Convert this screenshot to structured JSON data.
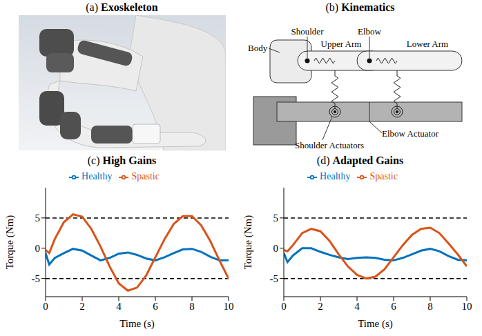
{
  "figure": {
    "a": {
      "letter": "(a)",
      "title": "Exoskeleton"
    },
    "b": {
      "letter": "(b)",
      "title": "Kinematics",
      "labels": {
        "body": "Body",
        "shoulder": "Shoulder",
        "upper_arm": "Upper Arm",
        "elbow": "Elbow",
        "lower_arm": "Lower Arm",
        "elbow_actuator": "Elbow Actuator",
        "shoulder_actuators": "Shoulder Actuators"
      }
    }
  },
  "chart_data": [
    {
      "letter": "(c)",
      "title": "High Gains",
      "type": "line",
      "x_label": "Time (s)",
      "y_label": "Torque (Nm)",
      "xlim": [
        0,
        10
      ],
      "xticks": [
        0,
        2,
        4,
        6,
        8,
        10
      ],
      "ylim": [
        -8,
        10
      ],
      "yticks": [
        -5,
        0,
        5
      ],
      "grid": false,
      "legend": "top",
      "torque_limits": [
        -5,
        5
      ],
      "x": [
        0,
        0.2,
        0.5,
        1,
        1.5,
        2,
        2.5,
        3,
        3.5,
        4,
        4.5,
        5,
        5.5,
        6,
        6.5,
        7,
        7.5,
        8,
        8.5,
        9,
        9.5,
        10
      ],
      "series": [
        {
          "name": "Healthy",
          "color": "#0072bd",
          "values": [
            -0.8,
            -2.7,
            -1.6,
            -0.8,
            -0.1,
            -0.4,
            -1.2,
            -2,
            -1.6,
            -0.9,
            -0.7,
            -1.1,
            -1.7,
            -2,
            -1.5,
            -0.8,
            -0.2,
            -0.1,
            -0.6,
            -1.4,
            -2,
            -2
          ]
        },
        {
          "name": "Spastic",
          "color": "#d95319",
          "values": [
            -0.3,
            -0.8,
            1.5,
            4.3,
            5.6,
            5.2,
            3.2,
            0.3,
            -3,
            -5.8,
            -7,
            -6.5,
            -4.5,
            -1.5,
            1.5,
            4,
            5.3,
            5.3,
            3.8,
            1.2,
            -2,
            -5
          ]
        }
      ]
    },
    {
      "letter": "(d)",
      "title": "Adapted Gains",
      "type": "line",
      "x_label": "Time (s)",
      "y_label": "Torque (Nm)",
      "xlim": [
        0,
        10
      ],
      "xticks": [
        0,
        2,
        4,
        6,
        8,
        10
      ],
      "ylim": [
        -8,
        10
      ],
      "yticks": [
        -5,
        0,
        5
      ],
      "grid": false,
      "legend": "top",
      "torque_limits": [
        -5,
        5
      ],
      "x": [
        0,
        0.2,
        0.5,
        1,
        1.5,
        2,
        2.5,
        3,
        3.5,
        4,
        4.5,
        5,
        5.5,
        6,
        6.5,
        7,
        7.5,
        8,
        8.5,
        9,
        9.5,
        10
      ],
      "series": [
        {
          "name": "Healthy",
          "color": "#0072bd",
          "values": [
            -0.8,
            -2.3,
            -1.2,
            0,
            0,
            -0.6,
            -1.1,
            -1.5,
            -1.8,
            -1.6,
            -1.5,
            -1.6,
            -1.9,
            -2,
            -1.6,
            -1,
            -0.4,
            -0.1,
            -0.5,
            -1.3,
            -1.9,
            -2
          ]
        },
        {
          "name": "Spastic",
          "color": "#d95319",
          "values": [
            -0.3,
            -0.5,
            0.5,
            2.5,
            3.2,
            2.8,
            1.2,
            -1,
            -3,
            -4.4,
            -5,
            -4.7,
            -3.5,
            -1.5,
            0.5,
            2.2,
            3.2,
            3.4,
            2.5,
            0.8,
            -1,
            -3
          ]
        }
      ]
    }
  ]
}
